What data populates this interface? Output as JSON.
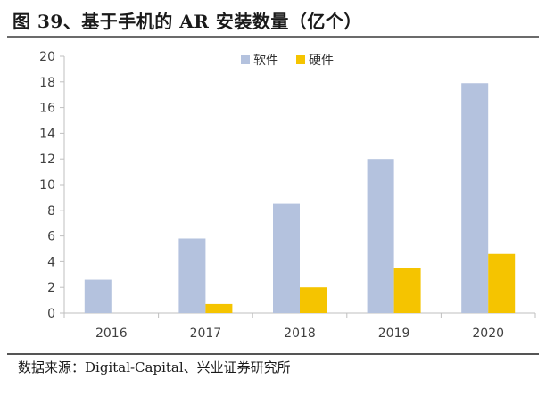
{
  "header": {
    "title": "图 39、基于手机的 AR 安装数量（亿个）"
  },
  "footer": {
    "source": "数据来源：Digital-Capital、兴业证券研究所"
  },
  "colors": {
    "software": "#b4c2de",
    "hardware": "#f5c400",
    "axis": "#bfbfbf",
    "text": "#404040"
  },
  "chart_data": {
    "type": "bar",
    "title": "图 39、基于手机的 AR 安装数量（亿个）",
    "categories": [
      "2016",
      "2017",
      "2018",
      "2019",
      "2020"
    ],
    "series": [
      {
        "name": "软件",
        "values": [
          2.6,
          5.8,
          8.5,
          12.0,
          17.9
        ]
      },
      {
        "name": "硬件",
        "values": [
          0,
          0.7,
          2.0,
          3.5,
          4.6
        ]
      }
    ],
    "ylim": [
      0,
      20
    ],
    "yticks": [
      "0",
      "2",
      "4",
      "6",
      "8",
      "10",
      "12",
      "14",
      "16",
      "18",
      "20"
    ],
    "grid": false,
    "legend": "top-center"
  }
}
